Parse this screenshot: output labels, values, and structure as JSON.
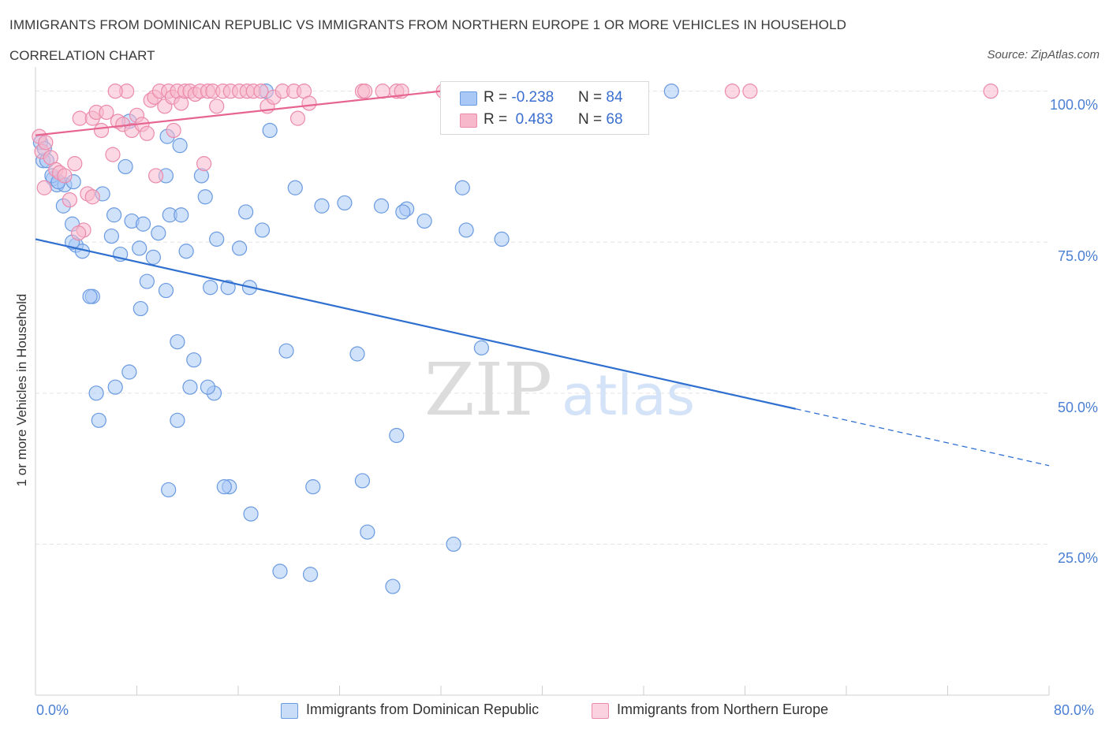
{
  "title": "IMMIGRANTS FROM DOMINICAN REPUBLIC VS IMMIGRANTS FROM NORTHERN EUROPE 1 OR MORE VEHICLES IN HOUSEHOLD",
  "subtitle": "CORRELATION CHART",
  "source": "Source: ZipAtlas.com",
  "watermark": {
    "zip": "ZIP",
    "atlas": "atlas"
  },
  "legend_top": [
    {
      "r_label": "R = ",
      "r_value": "-0.238",
      "n_label": "N = ",
      "n_value": "84"
    },
    {
      "r_label": "R = ",
      "r_value": " 0.483",
      "n_label": "N = ",
      "n_value": "68"
    }
  ],
  "colors": {
    "blue_fill": "#aac8f5",
    "blue_stroke": "#6a9ae0",
    "blue_line": "#2f6fd0",
    "pink_fill": "#f7b8cc",
    "pink_stroke": "#eb8aab",
    "pink_line": "#e6648f",
    "tick_text": "#4a7fd4",
    "grid": "#e3e3e3"
  },
  "chart_data": {
    "type": "scatter",
    "xlabel": "",
    "ylabel": "1 or more Vehicles in Household",
    "xlim": [
      0,
      80
    ],
    "ylim": [
      0,
      104
    ],
    "x_tick_labels": [
      "0.0%",
      "80.0%"
    ],
    "y_ticks": [
      {
        "value": 100,
        "label": "100.0%"
      },
      {
        "value": 75,
        "label": "75.0%"
      },
      {
        "value": 50,
        "label": "50.0%"
      },
      {
        "value": 25,
        "label": "25.0%"
      }
    ],
    "grid": true,
    "legend_position": "bottom",
    "series": [
      {
        "name": "Immigrants from Dominican Republic",
        "color": "#6a9ae0",
        "trend": {
          "x": [
            0,
            60
          ],
          "y": [
            75.5,
            47.4
          ],
          "dashed_to": [
            80,
            38.0
          ]
        },
        "points": [
          [
            0.4,
            91.5
          ],
          [
            0.6,
            88.5
          ],
          [
            0.9,
            88.5
          ],
          [
            1.4,
            85.5
          ],
          [
            1.7,
            84.5
          ],
          [
            2.3,
            84.5
          ],
          [
            3.0,
            85.0
          ],
          [
            1.3,
            86.0
          ],
          [
            2.2,
            81.0
          ],
          [
            2.9,
            78.0
          ],
          [
            3.2,
            74.5
          ],
          [
            3.7,
            73.5
          ],
          [
            4.5,
            66.0
          ],
          [
            4.3,
            66.0
          ],
          [
            5.3,
            83.0
          ],
          [
            6.0,
            76.0
          ],
          [
            6.2,
            79.5
          ],
          [
            6.7,
            73.0
          ],
          [
            7.1,
            87.5
          ],
          [
            7.4,
            53.5
          ],
          [
            7.6,
            78.5
          ],
          [
            8.2,
            74.0
          ],
          [
            8.5,
            78.0
          ],
          [
            8.3,
            64.0
          ],
          [
            8.8,
            68.5
          ],
          [
            9.3,
            72.5
          ],
          [
            9.7,
            76.5
          ],
          [
            10.3,
            86.0
          ],
          [
            10.6,
            79.5
          ],
          [
            10.3,
            67.0
          ],
          [
            11.2,
            58.5
          ],
          [
            11.5,
            79.5
          ],
          [
            11.9,
            73.5
          ],
          [
            12.5,
            55.5
          ],
          [
            12.2,
            51.0
          ],
          [
            13.4,
            82.5
          ],
          [
            13.8,
            67.5
          ],
          [
            14.1,
            50.0
          ],
          [
            14.3,
            75.5
          ],
          [
            15.2,
            67.5
          ],
          [
            15.3,
            34.5
          ],
          [
            16.1,
            74.0
          ],
          [
            16.6,
            80.0
          ],
          [
            17.0,
            30.0
          ],
          [
            17.9,
            77.0
          ],
          [
            18.5,
            93.5
          ],
          [
            19.3,
            20.5
          ],
          [
            19.8,
            57.0
          ],
          [
            20.5,
            84.0
          ],
          [
            21.7,
            20.0
          ],
          [
            21.9,
            34.5
          ],
          [
            22.6,
            81.0
          ],
          [
            24.4,
            81.5
          ],
          [
            25.4,
            56.5
          ],
          [
            25.8,
            35.5
          ],
          [
            26.2,
            27.0
          ],
          [
            27.3,
            81.0
          ],
          [
            28.2,
            18.0
          ],
          [
            28.5,
            43.0
          ],
          [
            29.3,
            80.5
          ],
          [
            29.0,
            80.0
          ],
          [
            30.7,
            78.5
          ],
          [
            33.0,
            25.0
          ],
          [
            33.7,
            84.0
          ],
          [
            34.0,
            77.0
          ],
          [
            35.2,
            57.5
          ],
          [
            36.8,
            75.5
          ],
          [
            50.2,
            100.0
          ],
          [
            4.8,
            50.0
          ],
          [
            5.0,
            45.5
          ],
          [
            6.3,
            51.0
          ],
          [
            7.4,
            95.0
          ],
          [
            10.4,
            92.5
          ],
          [
            11.4,
            91.0
          ],
          [
            11.2,
            45.5
          ],
          [
            13.1,
            86.0
          ],
          [
            13.6,
            51.0
          ],
          [
            10.5,
            34.0
          ],
          [
            14.9,
            34.5
          ],
          [
            16.9,
            67.5
          ],
          [
            18.2,
            100.0
          ],
          [
            0.7,
            90.5
          ],
          [
            1.8,
            85.0
          ],
          [
            2.9,
            75.0
          ]
        ]
      },
      {
        "name": "Immigrants from Northern Europe",
        "color": "#eb8aab",
        "trend": {
          "x": [
            0,
            32
          ],
          "y": [
            92.7,
            100.0
          ]
        },
        "points": [
          [
            0.3,
            92.5
          ],
          [
            0.5,
            90.0
          ],
          [
            0.8,
            91.5
          ],
          [
            1.2,
            89.0
          ],
          [
            1.6,
            87.0
          ],
          [
            1.9,
            86.5
          ],
          [
            2.3,
            86.0
          ],
          [
            0.7,
            84.0
          ],
          [
            3.1,
            88.0
          ],
          [
            3.5,
            95.5
          ],
          [
            3.8,
            77.0
          ],
          [
            4.1,
            83.0
          ],
          [
            4.5,
            95.5
          ],
          [
            4.8,
            96.5
          ],
          [
            5.2,
            93.5
          ],
          [
            5.6,
            96.5
          ],
          [
            6.1,
            89.5
          ],
          [
            6.5,
            95.0
          ],
          [
            6.9,
            94.5
          ],
          [
            7.2,
            100.0
          ],
          [
            7.6,
            93.5
          ],
          [
            8.0,
            96.0
          ],
          [
            8.4,
            94.5
          ],
          [
            8.8,
            93.0
          ],
          [
            9.1,
            98.5
          ],
          [
            9.4,
            99.0
          ],
          [
            9.8,
            100.0
          ],
          [
            10.2,
            97.5
          ],
          [
            10.5,
            100.0
          ],
          [
            10.8,
            99.0
          ],
          [
            11.2,
            100.0
          ],
          [
            11.5,
            98.0
          ],
          [
            11.8,
            100.0
          ],
          [
            12.2,
            100.0
          ],
          [
            12.6,
            99.5
          ],
          [
            13.0,
            100.0
          ],
          [
            13.3,
            88.0
          ],
          [
            13.6,
            100.0
          ],
          [
            14.0,
            100.0
          ],
          [
            14.3,
            97.5
          ],
          [
            14.8,
            100.0
          ],
          [
            15.4,
            100.0
          ],
          [
            16.1,
            100.0
          ],
          [
            16.7,
            100.0
          ],
          [
            17.2,
            100.0
          ],
          [
            17.8,
            100.0
          ],
          [
            18.3,
            97.5
          ],
          [
            18.8,
            99.0
          ],
          [
            19.5,
            100.0
          ],
          [
            20.4,
            100.0
          ],
          [
            20.7,
            95.5
          ],
          [
            21.2,
            100.0
          ],
          [
            21.6,
            98.0
          ],
          [
            25.8,
            100.0
          ],
          [
            26.0,
            100.0
          ],
          [
            27.4,
            100.0
          ],
          [
            28.5,
            100.0
          ],
          [
            28.9,
            100.0
          ],
          [
            32.2,
            100.0
          ],
          [
            55.0,
            100.0
          ],
          [
            56.4,
            100.0
          ],
          [
            75.4,
            100.0
          ],
          [
            9.5,
            86.0
          ],
          [
            6.3,
            100.0
          ],
          [
            10.9,
            93.5
          ],
          [
            3.4,
            76.5
          ],
          [
            2.7,
            82.0
          ],
          [
            4.5,
            82.5
          ]
        ]
      }
    ]
  }
}
